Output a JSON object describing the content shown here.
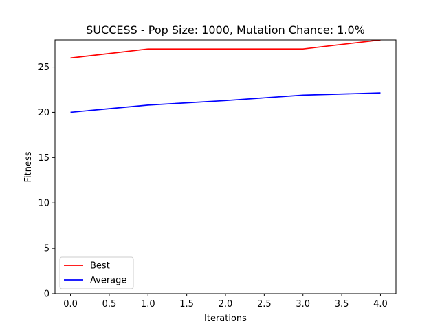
{
  "chart_data": {
    "type": "line",
    "title": "SUCCESS - Pop Size: 1000, Mutation Chance: 1.0%",
    "xlabel": "Iterations",
    "ylabel": "Fitness",
    "x": [
      0,
      1,
      2,
      3,
      4
    ],
    "xlim": [
      -0.2,
      4.2
    ],
    "ylim": [
      0,
      28
    ],
    "xticks": [
      0.0,
      0.5,
      1.0,
      1.5,
      2.0,
      2.5,
      3.0,
      3.5,
      4.0
    ],
    "xtick_labels": [
      "0.0",
      "0.5",
      "1.0",
      "1.5",
      "2.0",
      "2.5",
      "3.0",
      "3.5",
      "4.0"
    ],
    "yticks": [
      0,
      5,
      10,
      15,
      20,
      25
    ],
    "ytick_labels": [
      "0",
      "5",
      "10",
      "15",
      "20",
      "25"
    ],
    "grid": false,
    "legend_position": "lower-left",
    "series": [
      {
        "name": "Best",
        "color": "#ff0000",
        "values": [
          26,
          27,
          27,
          27,
          28
        ]
      },
      {
        "name": "Average",
        "color": "#0000ff",
        "values": [
          20.0,
          20.8,
          21.3,
          21.9,
          22.15
        ]
      }
    ]
  }
}
